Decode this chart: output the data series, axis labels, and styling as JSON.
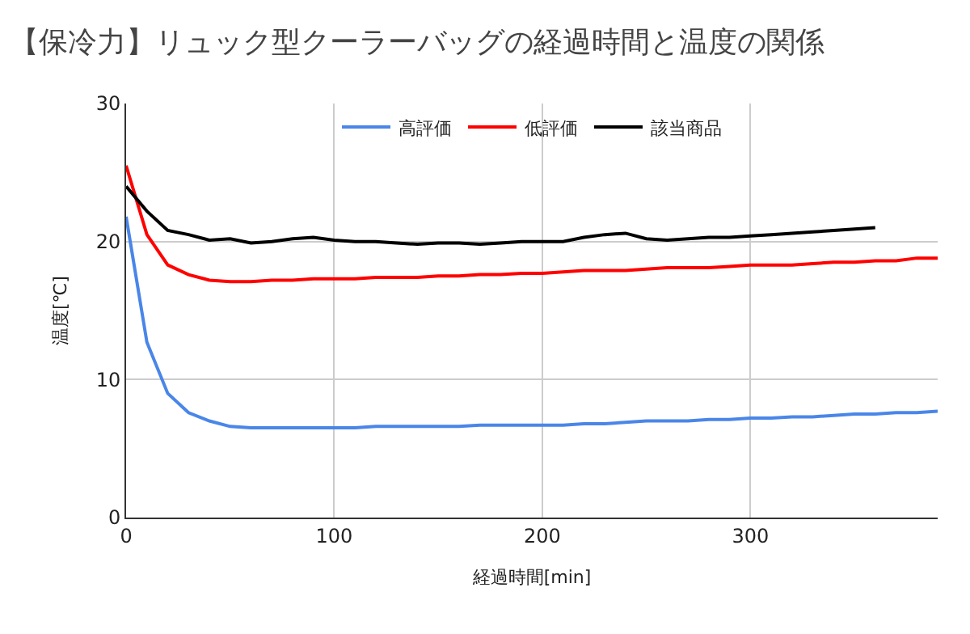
{
  "chart_data": {
    "type": "line",
    "title": "【保冷力】リュック型クーラーバッグの経過時間と温度の関係",
    "xlabel": "経過時間[min]",
    "ylabel": "温度[℃]",
    "x": [
      0,
      10,
      20,
      30,
      40,
      50,
      60,
      70,
      80,
      90,
      100,
      110,
      120,
      130,
      140,
      150,
      160,
      170,
      180,
      190,
      200,
      210,
      220,
      230,
      240,
      250,
      260,
      270,
      280,
      290,
      300,
      310,
      320,
      330,
      340,
      350,
      360,
      370,
      380,
      390
    ],
    "series": [
      {
        "name": "高評価",
        "color": "#4a86e8",
        "values": [
          21.8,
          12.7,
          9.0,
          7.6,
          7.0,
          6.6,
          6.5,
          6.5,
          6.5,
          6.5,
          6.5,
          6.5,
          6.6,
          6.6,
          6.6,
          6.6,
          6.6,
          6.7,
          6.7,
          6.7,
          6.7,
          6.7,
          6.8,
          6.8,
          6.9,
          7.0,
          7.0,
          7.0,
          7.1,
          7.1,
          7.2,
          7.2,
          7.3,
          7.3,
          7.4,
          7.5,
          7.5,
          7.6,
          7.6,
          7.7
        ]
      },
      {
        "name": "低評価",
        "color": "#ff0000",
        "values": [
          25.5,
          20.5,
          18.3,
          17.6,
          17.2,
          17.1,
          17.1,
          17.2,
          17.2,
          17.3,
          17.3,
          17.3,
          17.4,
          17.4,
          17.4,
          17.5,
          17.5,
          17.6,
          17.6,
          17.7,
          17.7,
          17.8,
          17.9,
          17.9,
          17.9,
          18.0,
          18.1,
          18.1,
          18.1,
          18.2,
          18.3,
          18.3,
          18.3,
          18.4,
          18.5,
          18.5,
          18.6,
          18.6,
          18.8,
          18.8
        ]
      },
      {
        "name": "該当商品",
        "color": "#000000",
        "values": [
          24.0,
          22.2,
          20.8,
          20.5,
          20.1,
          20.2,
          19.9,
          20.0,
          20.2,
          20.3,
          20.1,
          20.0,
          20.0,
          19.9,
          19.8,
          19.9,
          19.9,
          19.8,
          19.9,
          20.0,
          20.0,
          20.0,
          20.3,
          20.5,
          20.6,
          20.2,
          20.1,
          20.2,
          20.3,
          20.3,
          20.4,
          20.5,
          20.6,
          20.7,
          20.8,
          20.9,
          21.0,
          null,
          null,
          null
        ]
      }
    ],
    "xlim": [
      0,
      390
    ],
    "xticks": [
      0,
      100,
      200,
      300
    ],
    "ylim": [
      0,
      30
    ],
    "yticks": [
      0,
      10,
      20,
      30
    ],
    "grid": true,
    "legend": "top",
    "marker": "none",
    "line_style": "solid"
  }
}
